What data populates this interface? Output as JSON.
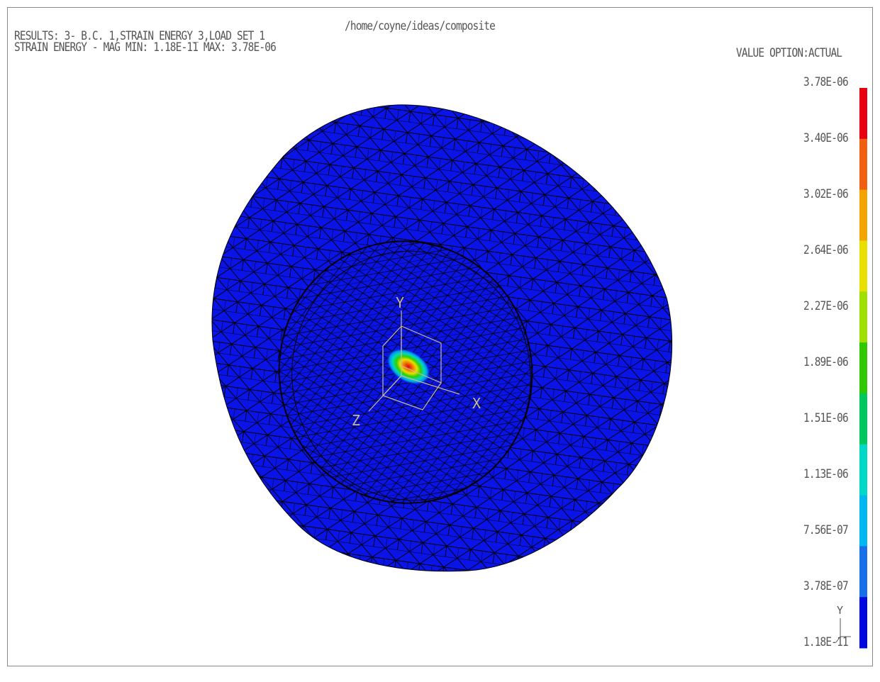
{
  "header": {
    "path": "/home/coyne/ideas/composite",
    "results_line": "RESULTS: 3- B.C. 1,STRAIN ENERGY_3,LOAD SET 1",
    "mag_line": "STRAIN ENERGY - MAG MIN: 1.18E-11 MAX: 3.78E-06",
    "value_option": "VALUE OPTION:ACTUAL"
  },
  "legend": {
    "labels": [
      "3.78E-06",
      "3.40E-06",
      "3.02E-06",
      "2.64E-06",
      "2.27E-06",
      "1.89E-06",
      "1.51E-06",
      "1.13E-06",
      "7.56E-07",
      "3.78E-07",
      "1.18E-11"
    ],
    "colors": [
      "#e8000f",
      "#f06010",
      "#f4a400",
      "#e8e000",
      "#a0e000",
      "#30c800",
      "#00c860",
      "#00d8c8",
      "#00b8f0",
      "#1870e8",
      "#0008e0"
    ]
  },
  "triad": {
    "x_label": "X",
    "y_label": "Y",
    "z_label": "Z"
  },
  "corner_triad": {
    "y_label": "Y"
  },
  "colors": {
    "model_blue": "#0a14e6",
    "mesh_line": "#000000",
    "triad_line": "#c8b890",
    "text": "#555555"
  }
}
